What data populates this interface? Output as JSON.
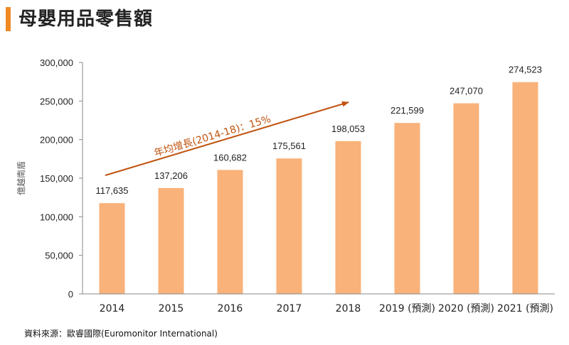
{
  "title": "母嬰用品零售額",
  "source": "資料來源：歐睿國際(Euromonitor International)",
  "colors": {
    "accent": "#f08a24",
    "bar": "#f9b27a",
    "arrow": "#c0530f",
    "axis": "#888888",
    "text": "#222222"
  },
  "chart_data": {
    "type": "bar",
    "categories": [
      "2014",
      "2015",
      "2016",
      "2017",
      "2018",
      "2019 (預測)",
      "2020 (預測)",
      "2021 (預測)"
    ],
    "values": [
      117635,
      137206,
      160682,
      175561,
      198053,
      221599,
      247070,
      274523
    ],
    "value_labels": [
      "117,635",
      "137,206",
      "160,682",
      "175,561",
      "198,053",
      "221,599",
      "247,070",
      "274,523"
    ],
    "ylabel": "億越南盾",
    "xlabel": "",
    "ylim": [
      0,
      300000
    ],
    "yticks": [
      0,
      50000,
      100000,
      150000,
      200000,
      250000,
      300000
    ],
    "ytick_labels": [
      "0",
      "50,000",
      "100,000",
      "150,000",
      "200,000",
      "250,000",
      "300,000"
    ],
    "grid": false,
    "annotation": "年均增長(2014-18)：15%"
  }
}
